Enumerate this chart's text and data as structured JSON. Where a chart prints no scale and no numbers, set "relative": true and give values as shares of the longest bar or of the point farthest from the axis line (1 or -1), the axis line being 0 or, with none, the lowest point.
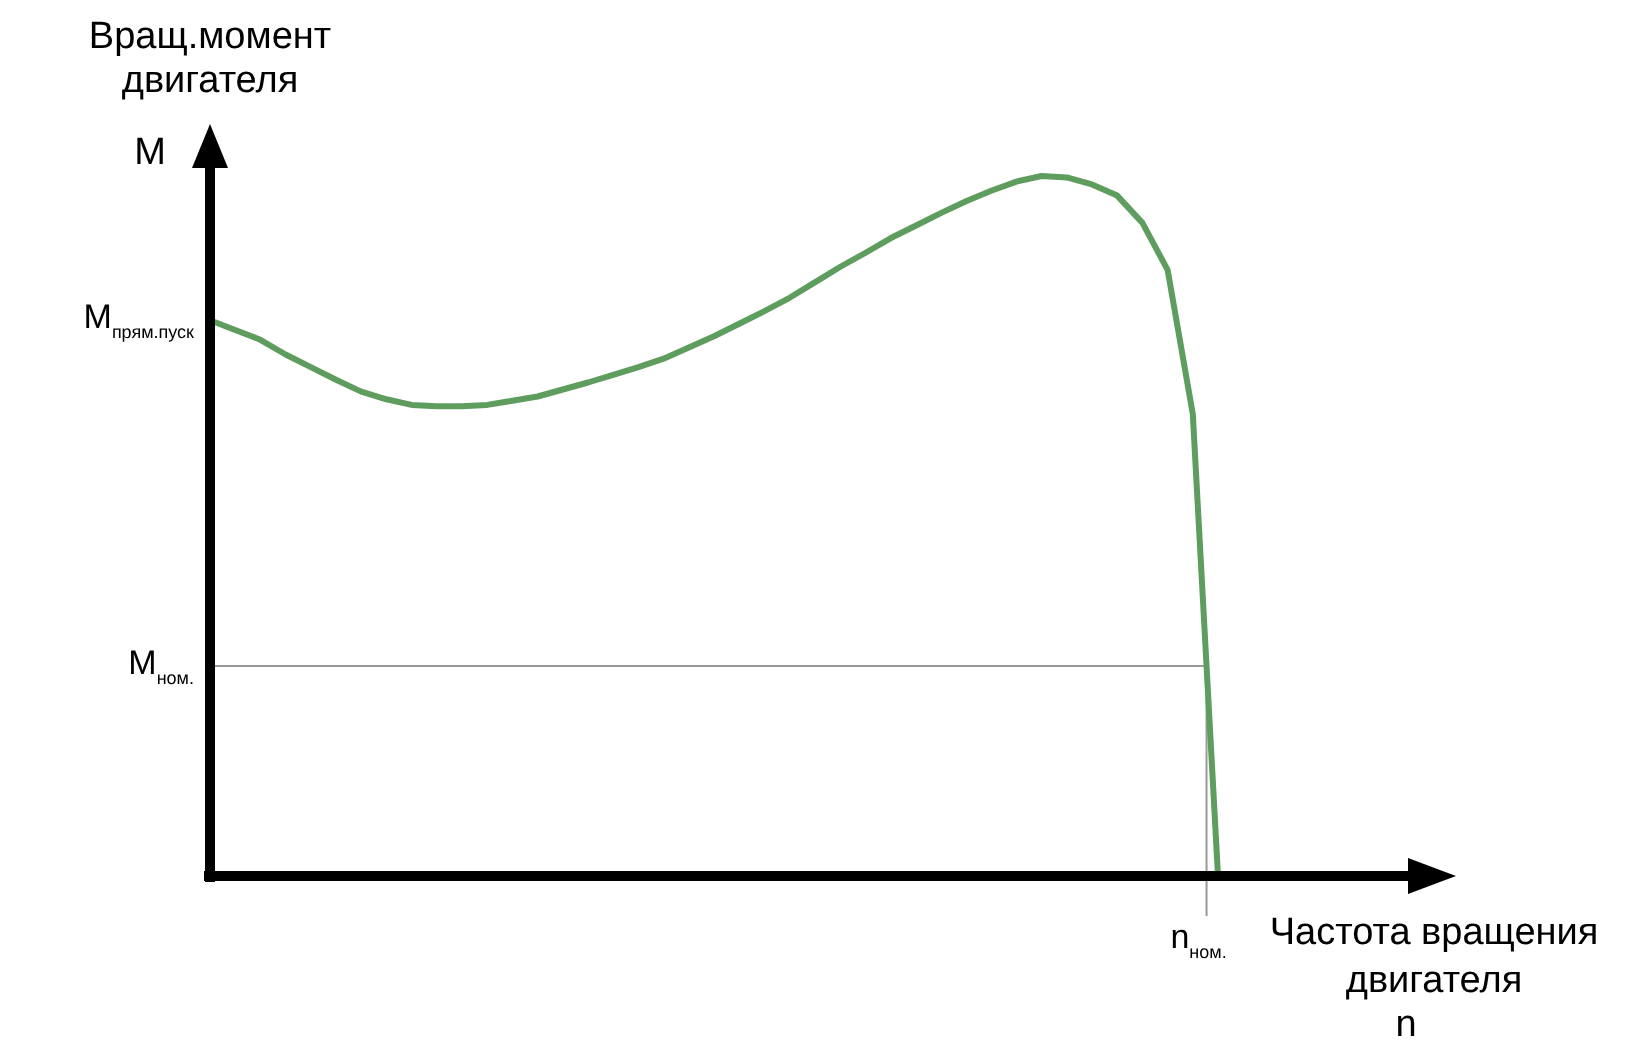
{
  "chart_data": {
    "type": "line",
    "relative": true,
    "ylabel": "Вращ.момент двигателя",
    "xlabel": "Частота вращения двигателя",
    "line_style": "solid",
    "categories": [
      null,
      null,
      null,
      null,
      null,
      null,
      null,
      null,
      null,
      null,
      null,
      null,
      null,
      null,
      null,
      null,
      null,
      null,
      null,
      null,
      null,
      null,
      null,
      null,
      null,
      null,
      null,
      null,
      null,
      null,
      null,
      null,
      null,
      null,
      null,
      null,
      null,
      null,
      null,
      null,
      null
    ],
    "series": [
      {
        "color": "#5f9d5f",
        "values": [
          0.794,
          0.78,
          0.766,
          0.745,
          0.727,
          0.709,
          0.692,
          0.681,
          0.673,
          0.671,
          0.671,
          0.673,
          0.679,
          0.685,
          0.695,
          0.705,
          0.716,
          0.727,
          0.739,
          0.755,
          0.771,
          0.789,
          0.807,
          0.826,
          0.848,
          0.87,
          0.89,
          0.911,
          0.929,
          0.947,
          0.964,
          0.979,
          0.992,
          1,
          0.998,
          0.988,
          0.972,
          0.933,
          0.866,
          0.66,
          0
        ]
      }
    ],
    "ref_lines": [
      {
        "axis": "y",
        "value": 0.3,
        "label": "M$_{ном.}$",
        "color": "#999999"
      }
    ],
    "annotations": [
      "M",
      "n",
      "M$_{прям.пуск}$",
      "n$_{ном.}$"
    ]
  }
}
